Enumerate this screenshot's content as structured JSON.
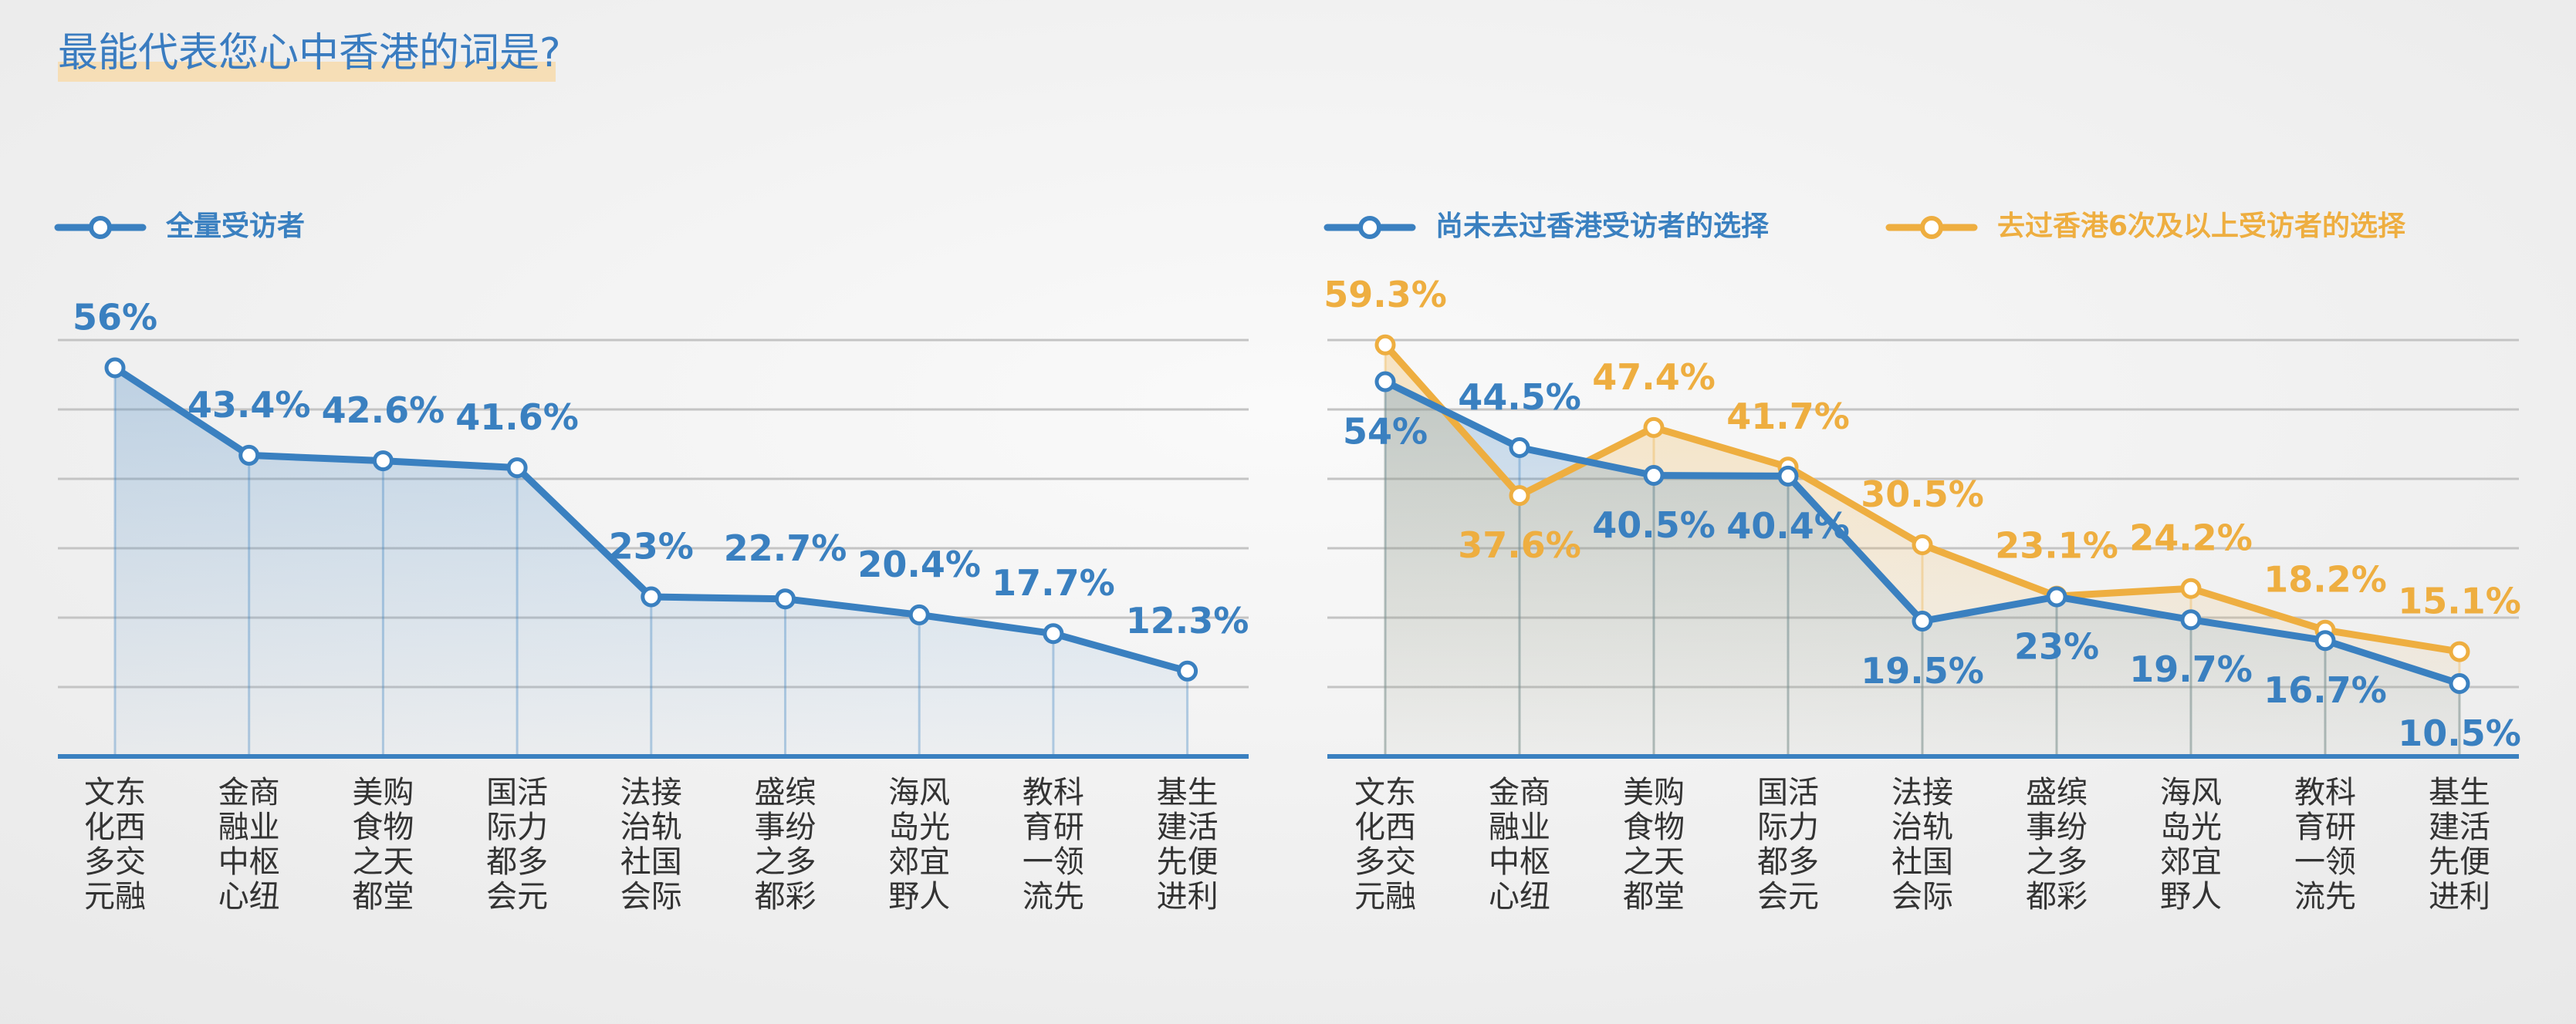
{
  "title": "最能代表您心中香港的词是?",
  "chart_data": [
    {
      "type": "line",
      "categories": [
        [
          "文东",
          "化西",
          "多交",
          "元融"
        ],
        [
          "金商",
          "融业",
          "中枢",
          "心纽"
        ],
        [
          "美购",
          "食物",
          "之天",
          "都堂"
        ],
        [
          "国活",
          "际力",
          "都多",
          "会元"
        ],
        [
          "法接",
          "治轨",
          "社国",
          "会际"
        ],
        [
          "盛缤",
          "事纷",
          "之多",
          "都彩"
        ],
        [
          "海风",
          "岛光",
          "郊宜",
          "野人"
        ],
        [
          "教科",
          "育研",
          "一领",
          "流先"
        ],
        [
          "基生",
          "建活",
          "先便",
          "进利"
        ]
      ],
      "series": [
        {
          "name": "全量受访者",
          "color": "#3a80c0",
          "values": [
            56,
            43.4,
            42.6,
            41.6,
            23,
            22.7,
            20.4,
            17.7,
            12.3
          ],
          "value_labels": [
            "56%",
            "43.4%",
            "42.6%",
            "41.6%",
            "23%",
            "22.7%",
            "20.4%",
            "17.7%",
            "12.3%"
          ]
        }
      ],
      "ylim": [
        0,
        60
      ],
      "yticks": [
        10,
        20,
        30,
        40,
        50,
        60
      ],
      "grid": true,
      "legend": "top-left"
    },
    {
      "type": "line",
      "categories": [
        [
          "文东",
          "化西",
          "多交",
          "元融"
        ],
        [
          "金商",
          "融业",
          "中枢",
          "心纽"
        ],
        [
          "美购",
          "食物",
          "之天",
          "都堂"
        ],
        [
          "国活",
          "际力",
          "都多",
          "会元"
        ],
        [
          "法接",
          "治轨",
          "社国",
          "会际"
        ],
        [
          "盛缤",
          "事纷",
          "之多",
          "都彩"
        ],
        [
          "海风",
          "岛光",
          "郊宜",
          "野人"
        ],
        [
          "教科",
          "育研",
          "一领",
          "流先"
        ],
        [
          "基生",
          "建活",
          "先便",
          "进利"
        ]
      ],
      "series": [
        {
          "name": "尚未去过香港受访者的选择",
          "color": "#3a80c0",
          "values": [
            54,
            44.5,
            40.5,
            40.4,
            19.5,
            23,
            19.7,
            16.7,
            10.5
          ],
          "value_labels": [
            "54%",
            "44.5%",
            "40.5%",
            "40.4%",
            "19.5%",
            "23%",
            "19.7%",
            "16.7%",
            "10.5%"
          ]
        },
        {
          "name": "去过香港6次及以上受访者的选择",
          "color": "#eeae40",
          "values": [
            59.3,
            37.6,
            47.4,
            41.7,
            30.5,
            23.1,
            24.2,
            18.2,
            15.1
          ],
          "value_labels": [
            "59.3%",
            "37.6%",
            "47.4%",
            "41.7%",
            "30.5%",
            "23.1%",
            "24.2%",
            "18.2%",
            "15.1%"
          ]
        }
      ],
      "ylim": [
        0,
        60
      ],
      "yticks": [
        10,
        20,
        30,
        40,
        50,
        60
      ],
      "grid": true,
      "legend": "top-left"
    }
  ]
}
